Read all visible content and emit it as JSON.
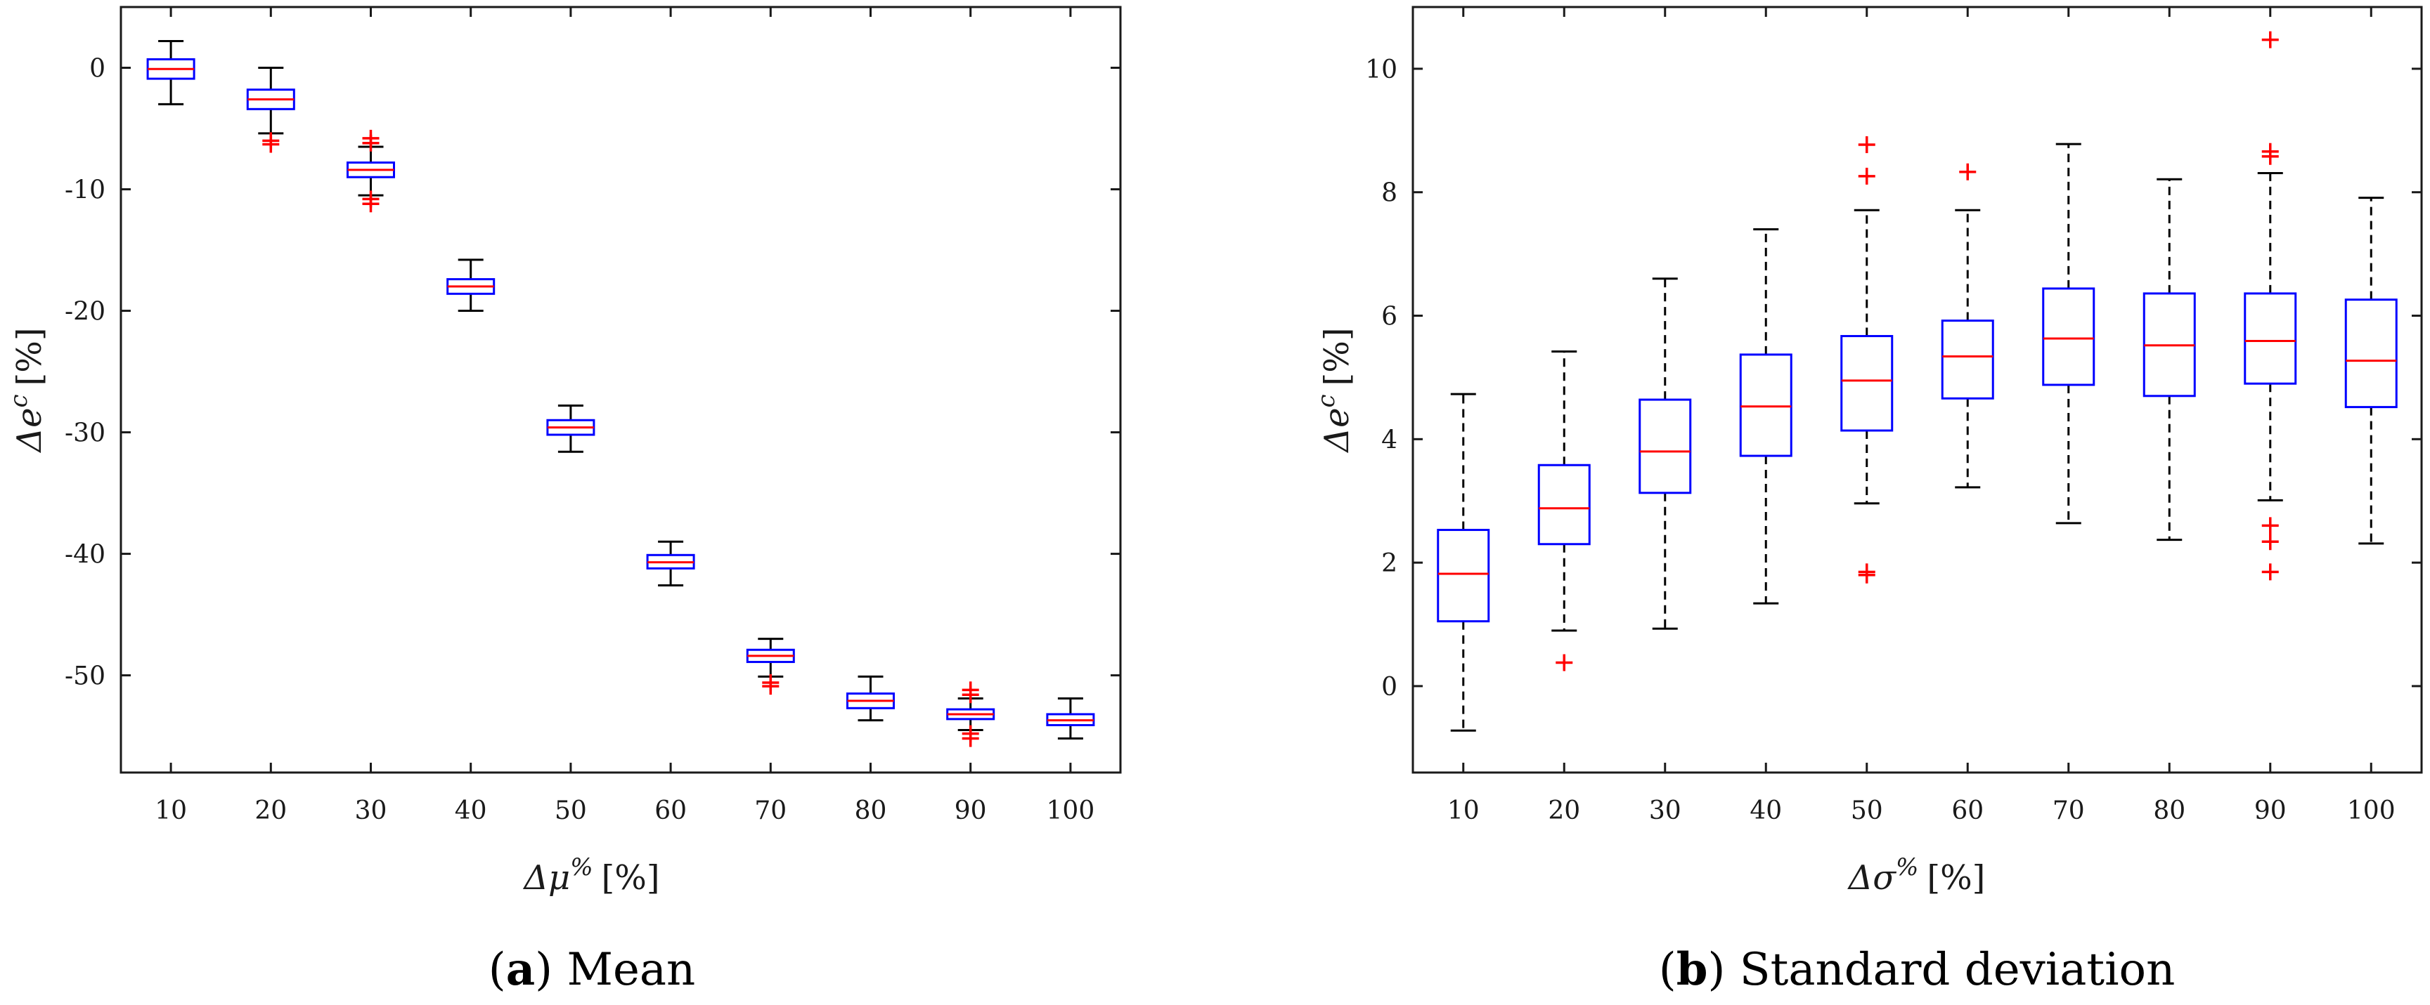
{
  "chart_data": [
    {
      "type": "boxplot",
      "caption_tag": "a",
      "caption_text": "Mean",
      "xlabel_base": "Δμ",
      "xlabel_sup": "%",
      "xlabel_unit": "[%]",
      "ylabel_base": "Δe",
      "ylabel_sup": "c",
      "ylabel_unit": "[%]",
      "ylim": [
        -58,
        5
      ],
      "yticks": [
        0,
        -10,
        -20,
        -30,
        -40,
        -50
      ],
      "ytick_labels": [
        "0",
        "-10",
        "-20",
        "-30",
        "-40",
        "-50"
      ],
      "categories": [
        "10",
        "20",
        "30",
        "40",
        "50",
        "60",
        "70",
        "80",
        "90",
        "100"
      ],
      "box_style": "solid-whisker",
      "boxes": [
        {
          "q1": -0.9,
          "median": -0.1,
          "q3": 0.7,
          "wlo": -3.0,
          "whi": 2.2,
          "outliers": []
        },
        {
          "q1": -3.4,
          "median": -2.6,
          "q3": -1.8,
          "wlo": -5.4,
          "whi": 0.0,
          "outliers": [
            -6.0,
            -6.3
          ]
        },
        {
          "q1": -9.0,
          "median": -8.4,
          "q3": -7.8,
          "wlo": -10.5,
          "whi": -6.5,
          "outliers": [
            -5.8,
            -6.2,
            -10.8,
            -11.2
          ]
        },
        {
          "q1": -18.6,
          "median": -18.0,
          "q3": -17.4,
          "wlo": -20.0,
          "whi": -15.8,
          "outliers": []
        },
        {
          "q1": -30.2,
          "median": -29.6,
          "q3": -29.0,
          "wlo": -31.6,
          "whi": -27.8,
          "outliers": []
        },
        {
          "q1": -41.2,
          "median": -40.7,
          "q3": -40.1,
          "wlo": -42.6,
          "whi": -39.0,
          "outliers": []
        },
        {
          "q1": -48.9,
          "median": -48.4,
          "q3": -47.9,
          "wlo": -50.1,
          "whi": -47.0,
          "outliers": [
            -50.6,
            -50.9
          ]
        },
        {
          "q1": -52.7,
          "median": -52.1,
          "q3": -51.5,
          "wlo": -53.7,
          "whi": -50.1,
          "outliers": []
        },
        {
          "q1": -53.6,
          "median": -53.2,
          "q3": -52.8,
          "wlo": -54.5,
          "whi": -51.9,
          "outliers": [
            -51.2,
            -51.6,
            -54.8,
            -55.2
          ]
        },
        {
          "q1": -54.1,
          "median": -53.7,
          "q3": -53.2,
          "wlo": -55.2,
          "whi": -51.9,
          "outliers": []
        }
      ]
    },
    {
      "type": "boxplot",
      "caption_tag": "b",
      "caption_text": "Standard deviation",
      "xlabel_base": "Δσ",
      "xlabel_sup": "%",
      "xlabel_unit": "[%]",
      "ylabel_base": "Δe",
      "ylabel_sup": "c",
      "ylabel_unit": "[%]",
      "ylim": [
        -1.4,
        11.0
      ],
      "yticks": [
        0,
        2,
        4,
        6,
        8,
        10
      ],
      "ytick_labels": [
        "0",
        "2",
        "4",
        "6",
        "8",
        "10"
      ],
      "categories": [
        "10",
        "20",
        "30",
        "40",
        "50",
        "60",
        "70",
        "80",
        "90",
        "100"
      ],
      "box_style": "dashed-whisker",
      "boxes": [
        {
          "q1": 1.05,
          "median": 1.82,
          "q3": 2.53,
          "wlo": -0.72,
          "whi": 4.73,
          "outliers": []
        },
        {
          "q1": 2.3,
          "median": 2.88,
          "q3": 3.58,
          "wlo": 0.9,
          "whi": 5.42,
          "outliers": [
            0.38
          ]
        },
        {
          "q1": 3.13,
          "median": 3.8,
          "q3": 4.64,
          "wlo": 0.93,
          "whi": 6.6,
          "outliers": []
        },
        {
          "q1": 3.73,
          "median": 4.53,
          "q3": 5.37,
          "wlo": 1.34,
          "whi": 7.4,
          "outliers": []
        },
        {
          "q1": 4.14,
          "median": 4.95,
          "q3": 5.67,
          "wlo": 2.96,
          "whi": 7.71,
          "outliers": [
            1.8,
            1.85,
            8.26,
            8.77
          ]
        },
        {
          "q1": 4.66,
          "median": 5.34,
          "q3": 5.92,
          "wlo": 3.22,
          "whi": 7.71,
          "outliers": [
            8.33
          ]
        },
        {
          "q1": 4.88,
          "median": 5.63,
          "q3": 6.44,
          "wlo": 2.64,
          "whi": 8.78,
          "outliers": []
        },
        {
          "q1": 4.7,
          "median": 5.52,
          "q3": 6.36,
          "wlo": 2.37,
          "whi": 8.21,
          "outliers": []
        },
        {
          "q1": 4.9,
          "median": 5.59,
          "q3": 6.36,
          "wlo": 3.01,
          "whi": 8.31,
          "outliers": [
            1.85,
            2.34,
            2.6,
            8.58,
            8.66,
            10.47
          ]
        },
        {
          "q1": 4.52,
          "median": 5.27,
          "q3": 6.26,
          "wlo": 2.31,
          "whi": 7.91,
          "outliers": []
        }
      ]
    }
  ],
  "colors": {
    "box": "#0000ff",
    "median": "#ff0000",
    "outlier": "#ff0000",
    "whisker": "#000000",
    "axis": "#1a1a1a"
  }
}
